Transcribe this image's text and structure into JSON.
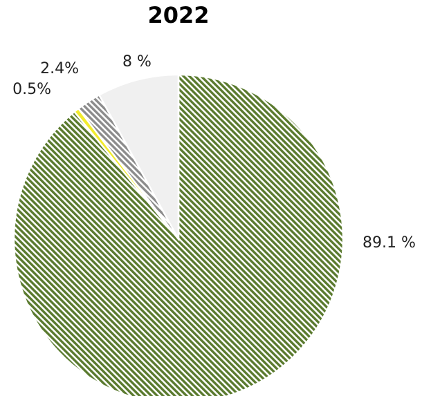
{
  "chart_data": {
    "type": "pie",
    "title": "2022",
    "start_angle": "12 o'clock",
    "direction": "clockwise",
    "slices": [
      {
        "label": "89.1 %",
        "value": 89.1,
        "color": "#5a7a2e",
        "pattern": "diagonal-hatch"
      },
      {
        "label": "0.5%",
        "value": 0.5,
        "color": "#f2ec2e",
        "pattern": "solid"
      },
      {
        "label": "2.4%",
        "value": 2.4,
        "color": "#8c8c8c",
        "pattern": "diagonal-hatch"
      },
      {
        "label": "8 %",
        "value": 8.0,
        "color": "#f0f0f0",
        "pattern": "solid"
      }
    ],
    "legend": "none"
  }
}
